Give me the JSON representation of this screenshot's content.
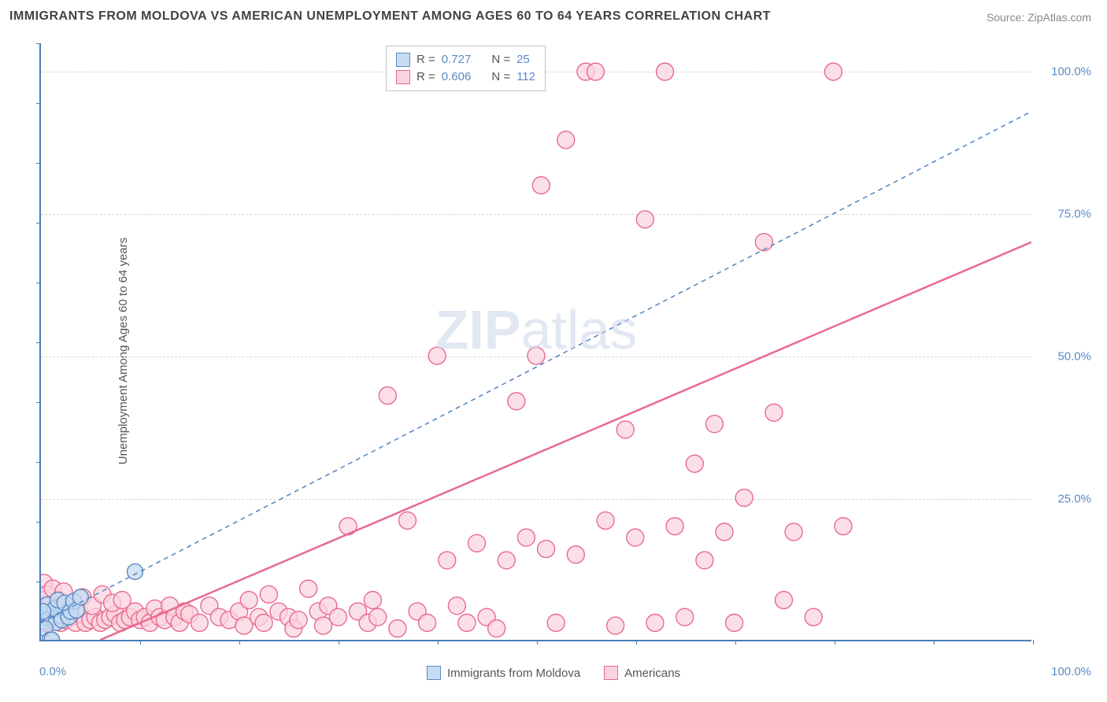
{
  "title": "IMMIGRANTS FROM MOLDOVA VS AMERICAN UNEMPLOYMENT AMONG AGES 60 TO 64 YEARS CORRELATION CHART",
  "source": "Source: ZipAtlas.com",
  "ylabel": "Unemployment Among Ages 60 to 64 years",
  "watermark": {
    "part1": "ZIP",
    "part2": "atlas"
  },
  "chart": {
    "type": "scatter",
    "xlim": [
      0,
      100
    ],
    "ylim": [
      0,
      105
    ],
    "xtick_labels": {
      "left": "0.0%",
      "right": "100.0%"
    },
    "ytick_positions": [
      25,
      50,
      75,
      100
    ],
    "ytick_labels": [
      "25.0%",
      "50.0%",
      "75.0%",
      "100.0%"
    ],
    "x_minor_ticks": 10,
    "y_minor_ticks": 10,
    "axis_color": "#4a7db8",
    "grid_color": "#d8d8d8",
    "tick_label_color": "#5a8ac4",
    "background_color": "#ffffff",
    "label_fontsize": 15,
    "title_fontsize": 16,
    "series": [
      {
        "name": "Immigrants from Moldova",
        "color_fill": "#c7dbf2",
        "color_stroke": "#5a8ac4",
        "marker_radius": 10,
        "R": 0.727,
        "N": 25,
        "trend": {
          "x1": 0,
          "y1": 3,
          "x2": 100,
          "y2": 93,
          "stroke": "#5a8ac4",
          "dash": "6,5",
          "width": 1.6
        },
        "points": [
          [
            0.3,
            3.2
          ],
          [
            0.5,
            4.5
          ],
          [
            0.8,
            3.8
          ],
          [
            1.0,
            4.0
          ],
          [
            1.2,
            5.2
          ],
          [
            1.5,
            3.0
          ],
          [
            1.8,
            5.8
          ],
          [
            2.0,
            4.2
          ],
          [
            2.2,
            6.0
          ],
          [
            2.5,
            4.8
          ],
          [
            0.4,
            2.0
          ],
          [
            0.6,
            6.2
          ],
          [
            0.9,
            0.0
          ],
          [
            1.1,
            -1.0
          ],
          [
            1.4,
            5.5
          ],
          [
            1.7,
            7.0
          ],
          [
            2.1,
            3.5
          ],
          [
            2.4,
            6.5
          ],
          [
            2.8,
            4.0
          ],
          [
            3.0,
            5.0
          ],
          [
            3.3,
            6.8
          ],
          [
            3.6,
            5.2
          ],
          [
            4.0,
            7.5
          ],
          [
            9.5,
            12.0
          ],
          [
            0.2,
            5.0
          ]
        ]
      },
      {
        "name": "Americans",
        "color_fill": "#f9d4df",
        "color_stroke": "#e86a8f",
        "marker_radius": 11,
        "R": 0.606,
        "N": 112,
        "trend": {
          "x1": 6,
          "y1": 0,
          "x2": 100,
          "y2": 70,
          "stroke": "#e86a8f",
          "dash": "none",
          "width": 2.5
        },
        "points": [
          [
            0.5,
            3
          ],
          [
            1,
            3.5
          ],
          [
            1.5,
            4
          ],
          [
            2,
            3
          ],
          [
            2.5,
            3.5
          ],
          [
            3,
            4
          ],
          [
            3.5,
            3
          ],
          [
            4,
            4.5
          ],
          [
            4.5,
            3
          ],
          [
            5,
            3.5
          ],
          [
            5.5,
            4
          ],
          [
            6,
            3
          ],
          [
            6.5,
            3.5
          ],
          [
            7,
            4
          ],
          [
            7.5,
            4.5
          ],
          [
            8,
            3
          ],
          [
            8.5,
            3.5
          ],
          [
            9,
            4
          ],
          [
            9.5,
            5
          ],
          [
            10,
            3.5
          ],
          [
            10.5,
            4
          ],
          [
            11,
            3
          ],
          [
            11.5,
            5.5
          ],
          [
            12,
            4
          ],
          [
            12.5,
            3.5
          ],
          [
            13,
            6
          ],
          [
            13.5,
            4
          ],
          [
            14,
            3
          ],
          [
            14.5,
            5
          ],
          [
            15,
            4.5
          ],
          [
            16,
            3
          ],
          [
            17,
            6
          ],
          [
            18,
            4
          ],
          [
            19,
            3.5
          ],
          [
            20,
            5
          ],
          [
            20.5,
            2.5
          ],
          [
            21,
            7
          ],
          [
            22,
            4
          ],
          [
            22.5,
            3
          ],
          [
            23,
            8
          ],
          [
            24,
            5
          ],
          [
            25,
            4
          ],
          [
            25.5,
            2
          ],
          [
            26,
            3.5
          ],
          [
            27,
            9
          ],
          [
            28,
            5
          ],
          [
            28.5,
            2.5
          ],
          [
            29,
            6
          ],
          [
            30,
            4
          ],
          [
            31,
            20
          ],
          [
            32,
            5
          ],
          [
            33,
            3
          ],
          [
            33.5,
            7
          ],
          [
            34,
            4
          ],
          [
            35,
            43
          ],
          [
            36,
            2
          ],
          [
            37,
            21
          ],
          [
            38,
            5
          ],
          [
            39,
            3
          ],
          [
            40,
            50
          ],
          [
            41,
            14
          ],
          [
            42,
            6
          ],
          [
            43,
            3
          ],
          [
            44,
            17
          ],
          [
            45,
            4
          ],
          [
            46,
            2
          ],
          [
            47,
            14
          ],
          [
            48,
            42
          ],
          [
            49,
            18
          ],
          [
            50,
            50
          ],
          [
            50.5,
            80
          ],
          [
            51,
            16
          ],
          [
            52,
            3
          ],
          [
            53,
            88
          ],
          [
            54,
            15
          ],
          [
            55,
            100
          ],
          [
            56,
            100
          ],
          [
            57,
            21
          ],
          [
            58,
            2.5
          ],
          [
            59,
            37
          ],
          [
            60,
            18
          ],
          [
            61,
            74
          ],
          [
            62,
            3
          ],
          [
            63,
            100
          ],
          [
            64,
            20
          ],
          [
            65,
            4
          ],
          [
            66,
            31
          ],
          [
            67,
            14
          ],
          [
            68,
            38
          ],
          [
            69,
            19
          ],
          [
            70,
            3
          ],
          [
            71,
            25
          ],
          [
            73,
            70
          ],
          [
            74,
            40
          ],
          [
            75,
            7
          ],
          [
            76,
            19
          ],
          [
            80,
            100
          ],
          [
            81,
            20
          ],
          [
            78,
            4
          ],
          [
            0.3,
            10
          ],
          [
            0.4,
            7
          ],
          [
            0.6,
            8
          ],
          [
            0.8,
            6
          ],
          [
            1.2,
            9
          ],
          [
            1.8,
            7
          ],
          [
            2.3,
            8.5
          ],
          [
            3.2,
            6.5
          ],
          [
            4.2,
            7.5
          ],
          [
            5.2,
            6
          ],
          [
            6.2,
            8
          ],
          [
            7.2,
            6.5
          ],
          [
            8.2,
            7
          ]
        ]
      }
    ],
    "legend_bottom": [
      {
        "label": "Immigrants from Moldova",
        "fill": "#c7dbf2",
        "stroke": "#5a8ac4"
      },
      {
        "label": "Americans",
        "fill": "#f9d4df",
        "stroke": "#e86a8f"
      }
    ],
    "legend_top": [
      {
        "fill": "#c7dbf2",
        "stroke": "#5a8ac4",
        "R_label": "R  =",
        "R_val": "0.727",
        "N_label": "N  =",
        "N_val": "25"
      },
      {
        "fill": "#f9d4df",
        "stroke": "#e86a8f",
        "R_label": "R  =",
        "R_val": "0.606",
        "N_label": "N  =",
        "N_val": "112"
      }
    ]
  }
}
